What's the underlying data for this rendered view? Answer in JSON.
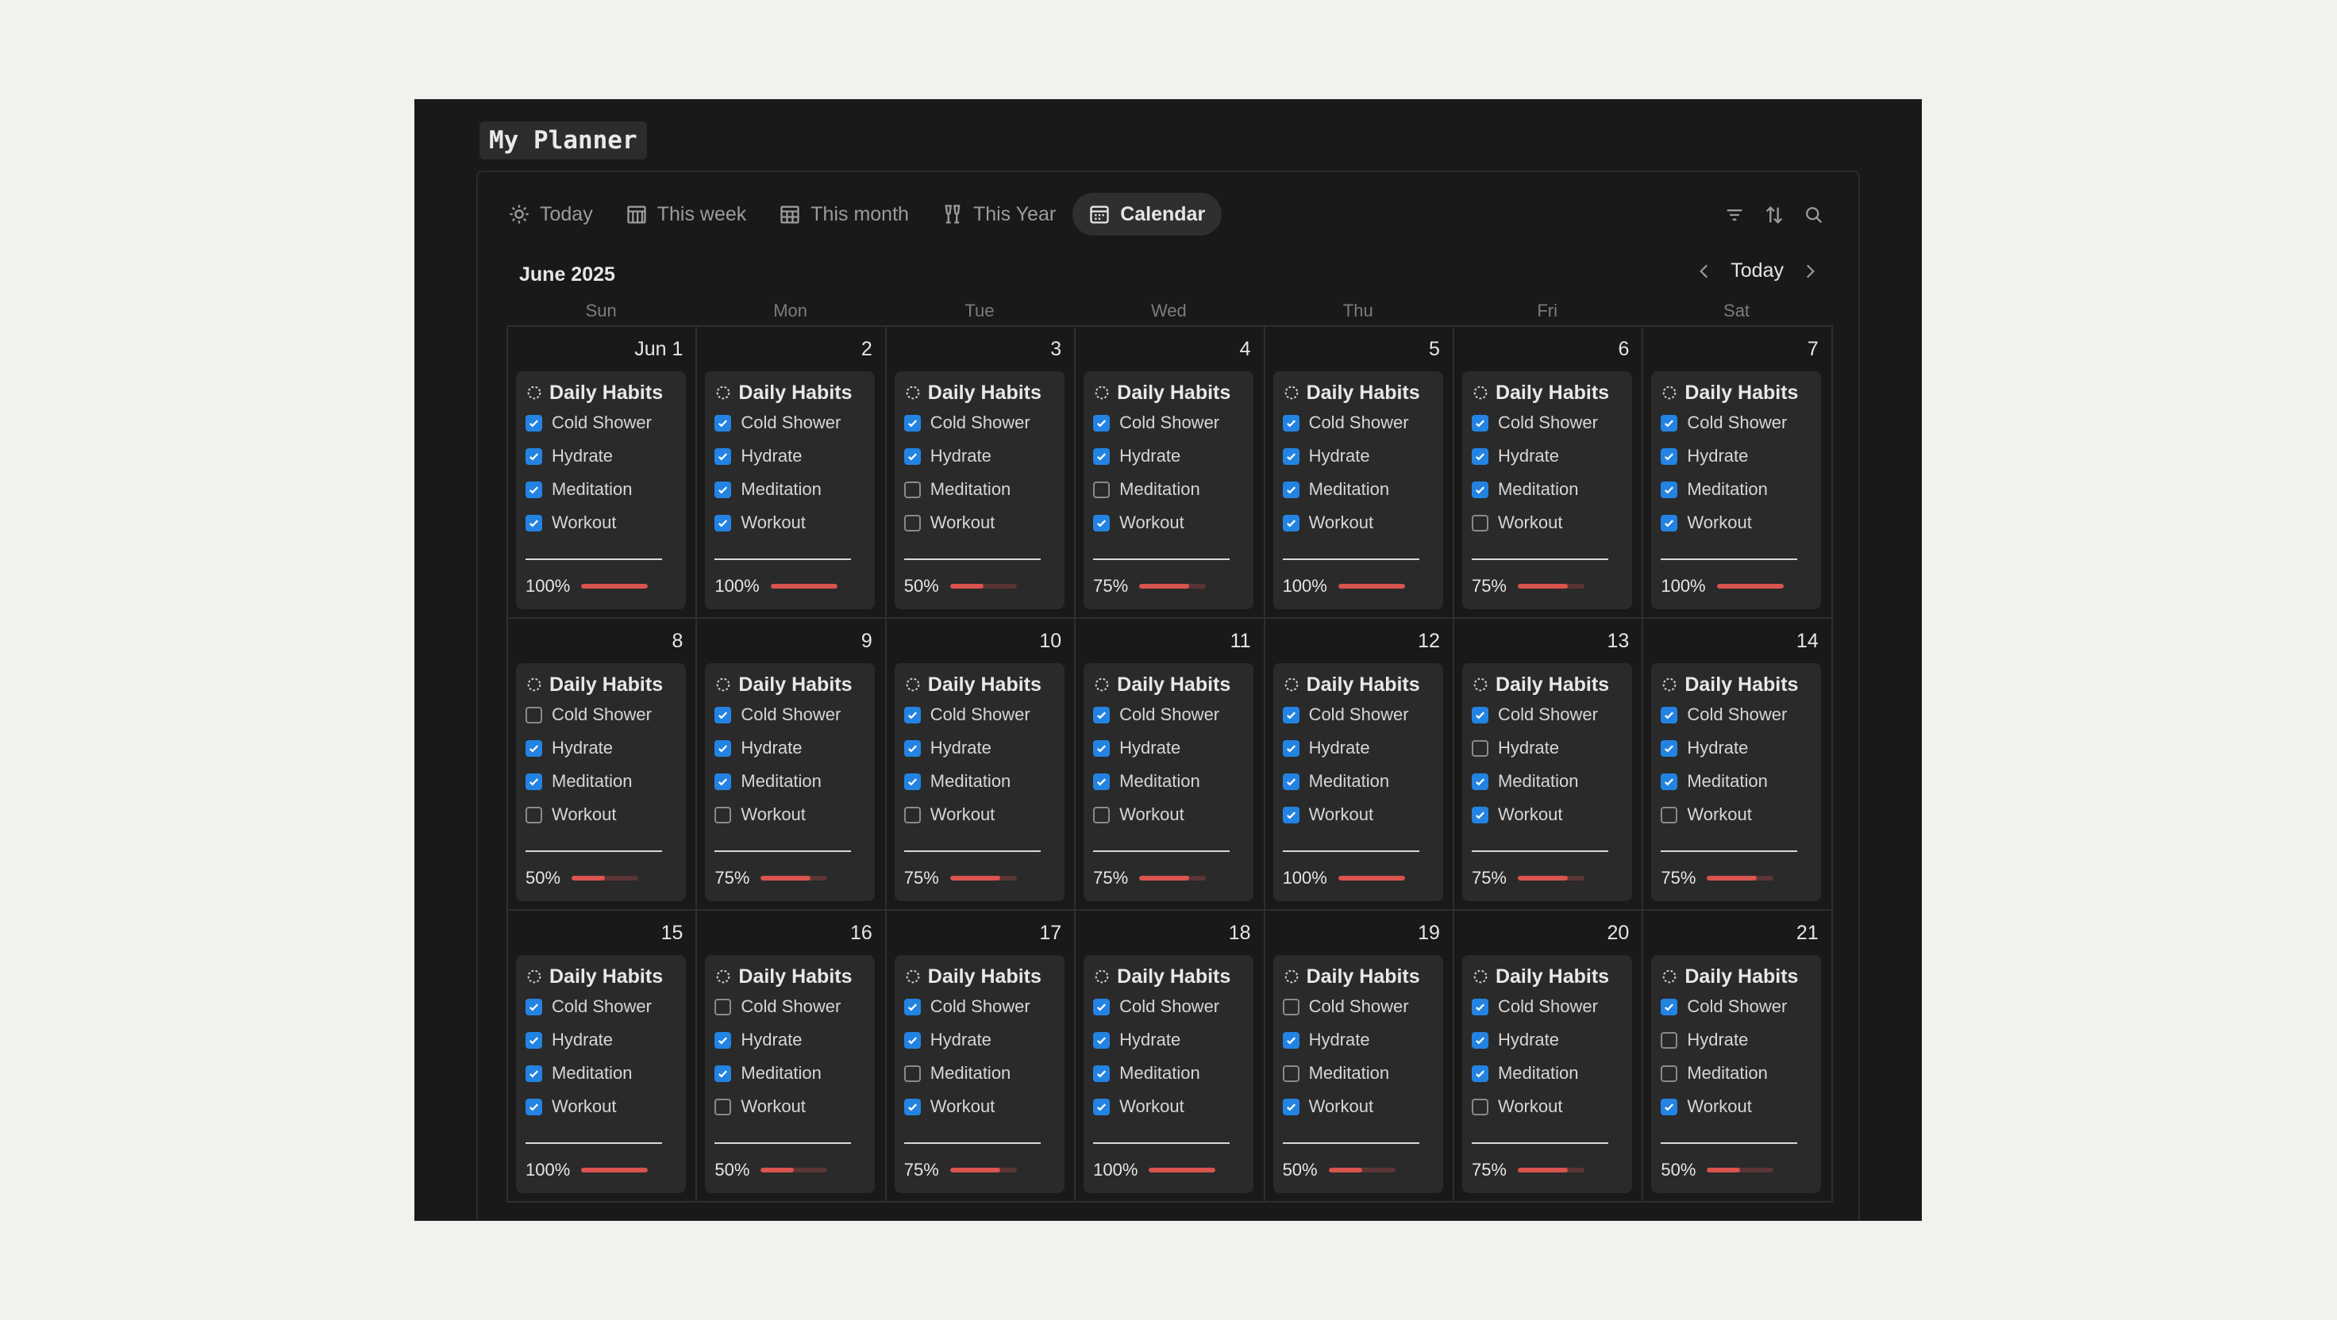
{
  "page": {
    "title": "My Planner"
  },
  "tabs": [
    {
      "label": "Today",
      "icon": "sun-icon",
      "active": false
    },
    {
      "label": "This week",
      "icon": "calendar-week-icon",
      "active": false
    },
    {
      "label": "This month",
      "icon": "calendar-month-icon",
      "active": false
    },
    {
      "label": "This Year",
      "icon": "champagne-icon",
      "active": false
    },
    {
      "label": "Calendar",
      "icon": "calendar-icon",
      "active": true
    }
  ],
  "toolbar": {
    "icons": [
      "filter-icon",
      "sort-icon",
      "search-icon"
    ]
  },
  "calendar": {
    "month_label": "June 2025",
    "today_label": "Today",
    "weekdays": [
      "Sun",
      "Mon",
      "Tue",
      "Wed",
      "Thu",
      "Fri",
      "Sat"
    ],
    "card_title": "Daily Habits",
    "habit_names": [
      "Cold Shower",
      "Hydrate",
      "Meditation",
      "Workout"
    ],
    "colors": {
      "checkbox": "#2383e2",
      "progress_fill": "#d9534f",
      "progress_track": "#5a3535"
    },
    "days": [
      {
        "label": "Jun 1",
        "habits": [
          true,
          true,
          true,
          true
        ],
        "percent": "100%",
        "progress": 1.0
      },
      {
        "label": "2",
        "habits": [
          true,
          true,
          true,
          true
        ],
        "percent": "100%",
        "progress": 1.0
      },
      {
        "label": "3",
        "habits": [
          true,
          true,
          false,
          false
        ],
        "percent": "50%",
        "progress": 0.5
      },
      {
        "label": "4",
        "habits": [
          true,
          true,
          false,
          true
        ],
        "percent": "75%",
        "progress": 0.75
      },
      {
        "label": "5",
        "habits": [
          true,
          true,
          true,
          true
        ],
        "percent": "100%",
        "progress": 1.0
      },
      {
        "label": "6",
        "habits": [
          true,
          true,
          true,
          false
        ],
        "percent": "75%",
        "progress": 0.75
      },
      {
        "label": "7",
        "habits": [
          true,
          true,
          true,
          true
        ],
        "percent": "100%",
        "progress": 1.0
      },
      {
        "label": "8",
        "habits": [
          false,
          true,
          true,
          false
        ],
        "percent": "50%",
        "progress": 0.5
      },
      {
        "label": "9",
        "habits": [
          true,
          true,
          true,
          false
        ],
        "percent": "75%",
        "progress": 0.75
      },
      {
        "label": "10",
        "habits": [
          true,
          true,
          true,
          false
        ],
        "percent": "75%",
        "progress": 0.75
      },
      {
        "label": "11",
        "habits": [
          true,
          true,
          true,
          false
        ],
        "percent": "75%",
        "progress": 0.75
      },
      {
        "label": "12",
        "habits": [
          true,
          true,
          true,
          true
        ],
        "percent": "100%",
        "progress": 1.0
      },
      {
        "label": "13",
        "habits": [
          true,
          false,
          true,
          true
        ],
        "percent": "75%",
        "progress": 0.75
      },
      {
        "label": "14",
        "habits": [
          true,
          true,
          true,
          false
        ],
        "percent": "75%",
        "progress": 0.75
      },
      {
        "label": "15",
        "habits": [
          true,
          true,
          true,
          true
        ],
        "percent": "100%",
        "progress": 1.0
      },
      {
        "label": "16",
        "habits": [
          false,
          true,
          true,
          false
        ],
        "percent": "50%",
        "progress": 0.5
      },
      {
        "label": "17",
        "habits": [
          true,
          true,
          false,
          true
        ],
        "percent": "75%",
        "progress": 0.75
      },
      {
        "label": "18",
        "habits": [
          true,
          true,
          true,
          true
        ],
        "percent": "100%",
        "progress": 1.0
      },
      {
        "label": "19",
        "habits": [
          false,
          true,
          false,
          true
        ],
        "percent": "50%",
        "progress": 0.5
      },
      {
        "label": "20",
        "habits": [
          true,
          true,
          true,
          false
        ],
        "percent": "75%",
        "progress": 0.75
      },
      {
        "label": "21",
        "habits": [
          true,
          false,
          false,
          true
        ],
        "percent": "50%",
        "progress": 0.5
      }
    ]
  }
}
